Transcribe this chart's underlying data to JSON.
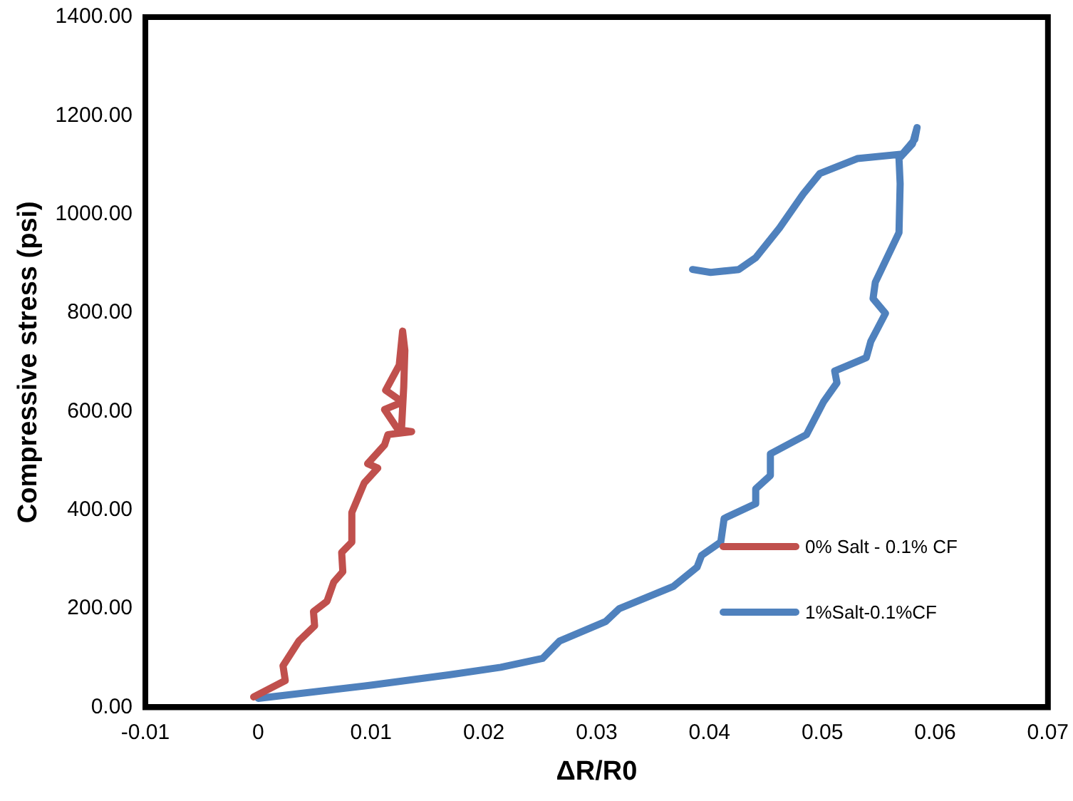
{
  "chart_data": {
    "type": "line",
    "xlabel": "ΔR/R0",
    "ylabel": "Compressive stress (psi)",
    "xlim": [
      -0.01,
      0.07
    ],
    "xticks": [
      -0.01,
      0,
      0.01,
      0.02,
      0.03,
      0.04,
      0.05,
      0.06,
      0.07
    ],
    "ylim": [
      0,
      1400
    ],
    "yticks": [
      {
        "value": 0,
        "label": "0.00"
      },
      {
        "value": 200,
        "label": "200.00"
      },
      {
        "value": 400,
        "label": "400.00"
      },
      {
        "value": 600,
        "label": "600.00"
      },
      {
        "value": 800,
        "label": "800.00"
      },
      {
        "value": 1000,
        "label": "1000.00"
      },
      {
        "value": 1200,
        "label": "1200.00"
      },
      {
        "value": 1400,
        "label": "1400.00"
      }
    ],
    "grid": false,
    "legend": "right",
    "marker": "none",
    "line_style": "solid",
    "series": [
      {
        "name": "0% Salt - 0.1% CF",
        "color": "#c0504d",
        "x": [
          -0.0004,
          0.0024,
          0.0022,
          0.0036,
          0.005,
          0.0049,
          0.0061,
          0.0067,
          0.0075,
          0.0074,
          0.0083,
          0.0083,
          0.0094,
          0.0106,
          0.0097,
          0.0112,
          0.0115,
          0.0136,
          0.0124,
          0.0112,
          0.0128,
          0.0113,
          0.0125,
          0.0128,
          0.013,
          0.0129,
          0.0127
        ],
        "values": [
          21,
          54,
          84,
          134,
          165,
          194,
          215,
          254,
          275,
          314,
          335,
          395,
          455,
          485,
          494,
          532,
          553,
          559,
          563,
          604,
          619,
          643,
          694,
          763,
          724,
          650,
          563
        ]
      },
      {
        "name": "1%Salt-0.1%CF",
        "color": "#4f81bd",
        "x": [
          0,
          0.0101,
          0.017,
          0.0215,
          0.0252,
          0.0267,
          0.0308,
          0.032,
          0.0368,
          0.0389,
          0.0393,
          0.041,
          0.0413,
          0.0441,
          0.0441,
          0.0454,
          0.0454,
          0.0486,
          0.0501,
          0.0513,
          0.0511,
          0.0539,
          0.0543,
          0.0556,
          0.0545,
          0.0547,
          0.0568,
          0.0569,
          0.0568,
          0.058,
          0.0584,
          0.0582,
          0.0571,
          0.0531,
          0.0498,
          0.0483,
          0.0462,
          0.0441,
          0.0426,
          0.0401,
          0.0385
        ],
        "values": [
          18,
          45,
          66,
          81,
          99,
          134,
          174,
          200,
          245,
          284,
          308,
          335,
          383,
          413,
          443,
          470,
          514,
          553,
          619,
          658,
          682,
          709,
          742,
          799,
          829,
          862,
          963,
          1062,
          1113,
          1143,
          1176,
          1152,
          1122,
          1113,
          1083,
          1041,
          972,
          912,
          888,
          882,
          888
        ]
      }
    ]
  }
}
